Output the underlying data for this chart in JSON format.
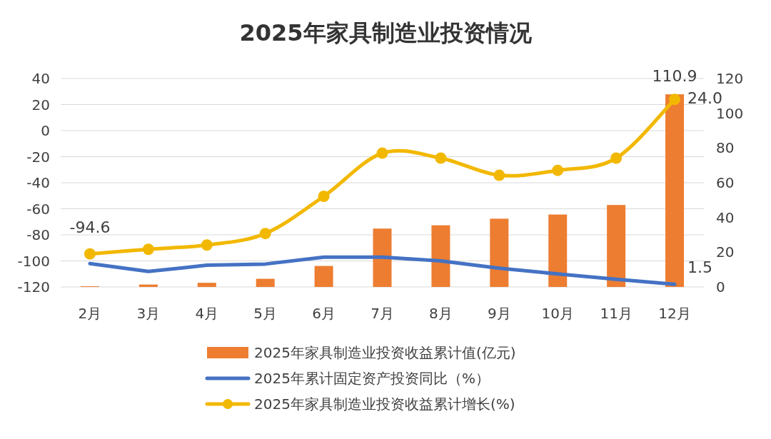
{
  "chart_data": {
    "type": "bar",
    "title": "2025年家具制造业投资情况",
    "categories": [
      "2月",
      "3月",
      "4月",
      "5月",
      "6月",
      "7月",
      "8月",
      "9月",
      "10月",
      "11月",
      "12月"
    ],
    "series": [
      {
        "name": "2025年家具制造业投资收益累计值(亿元)",
        "axis": "y2",
        "color": "#ed7d31",
        "values": [
          0.4,
          1.4,
          2.4,
          4.7,
          12.1,
          33.6,
          35.5,
          39.3,
          41.7,
          47.2,
          110.9
        ],
        "value_labels": [
          null,
          null,
          null,
          null,
          null,
          null,
          null,
          null,
          null,
          null,
          "110.9"
        ]
      },
      {
        "name": "2025年累计固定资产投资同比（%）",
        "type": "line",
        "axis": "y2",
        "color": "#4472c4",
        "marker": "none",
        "values": [
          13.5,
          8.9,
          12.5,
          13.2,
          17.2,
          17.2,
          15.0,
          10.8,
          7.5,
          4.4,
          1.5
        ],
        "value_labels": [
          null,
          null,
          null,
          null,
          null,
          null,
          null,
          null,
          null,
          null,
          "1.5"
        ]
      },
      {
        "name": "2025年家具制造业投资收益累计增长(%)",
        "type": "line",
        "axis": "y",
        "color": "#f2b800",
        "marker": "circle",
        "values": [
          -94.6,
          -91.1,
          -87.8,
          -79.0,
          -50.4,
          -17.3,
          -21.1,
          -34.3,
          -30.5,
          -21.1,
          24.0
        ],
        "value_labels": [
          "-94.6",
          null,
          null,
          null,
          null,
          null,
          null,
          null,
          null,
          null,
          "24.0"
        ]
      }
    ],
    "ylim": [
      -120,
      40
    ],
    "yticks": [
      -120,
      -100,
      -80,
      -60,
      -40,
      -20,
      0,
      20,
      40
    ],
    "y2lim": [
      0,
      120
    ],
    "y2ticks": [
      0,
      20,
      40,
      60,
      80,
      100,
      120
    ],
    "grid": "y",
    "legend": "bottom"
  }
}
